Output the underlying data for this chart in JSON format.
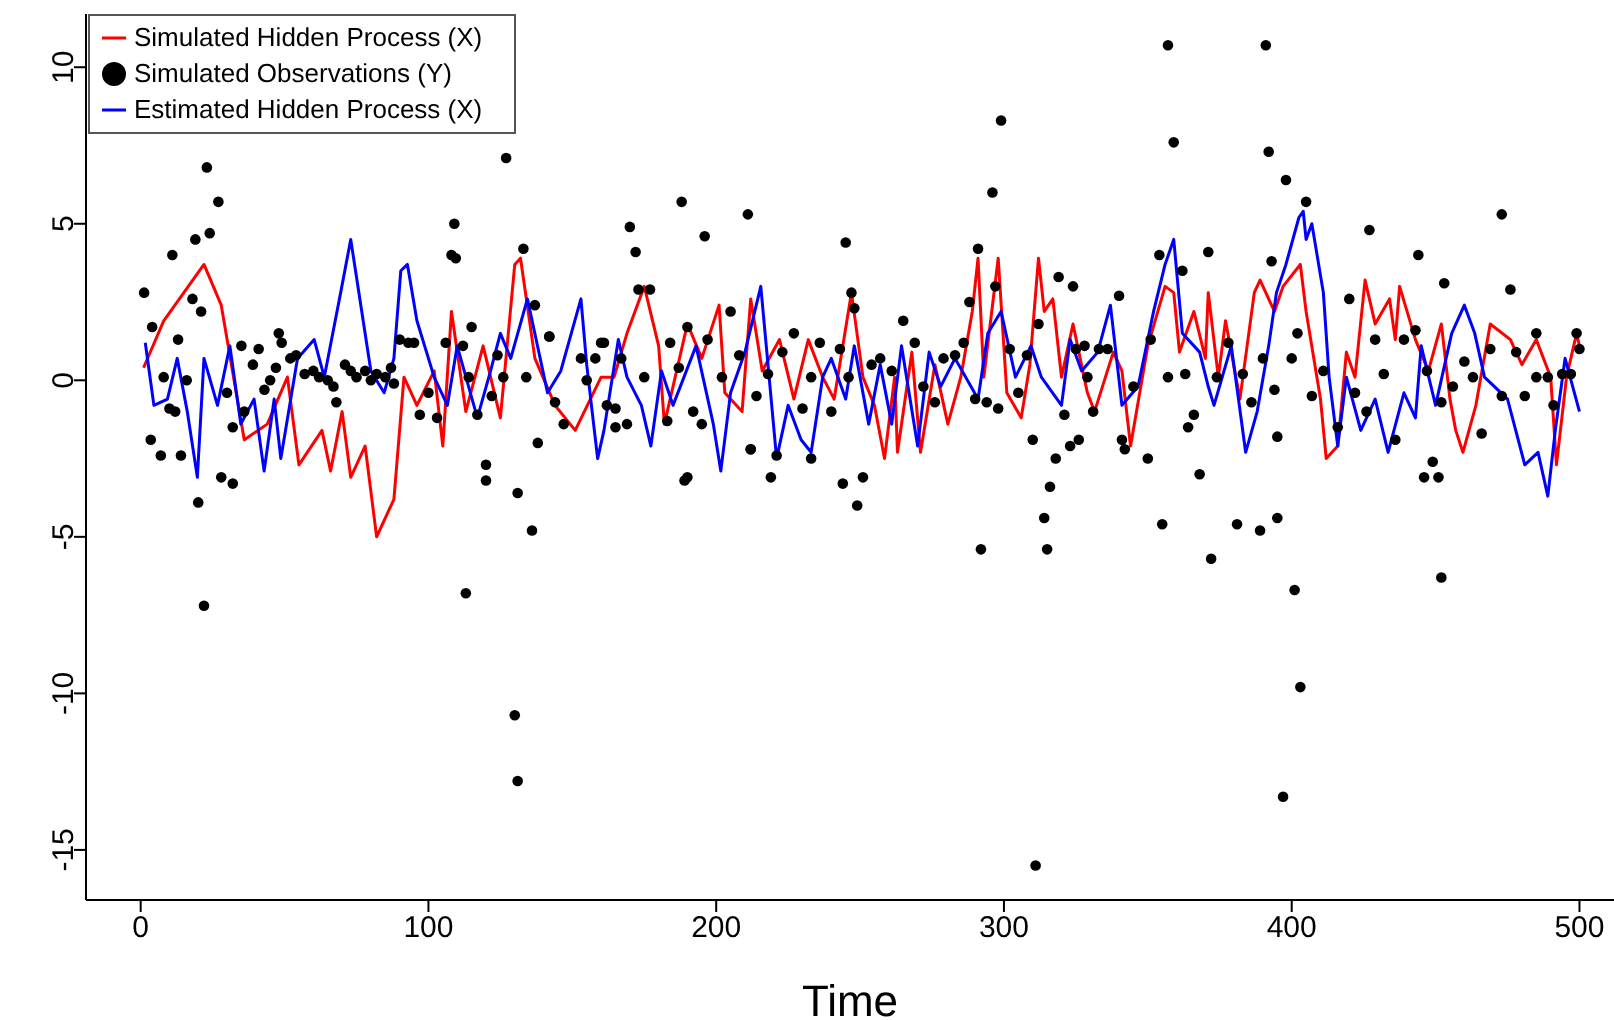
{
  "chart_data": {
    "type": "line",
    "xlabel": "Time",
    "xlim": [
      -19,
      512
    ],
    "ylim": [
      -16.6,
      11.7
    ],
    "xticks": [
      0,
      100,
      200,
      300,
      400,
      500
    ],
    "yticks": [
      -15,
      -10,
      -5,
      0,
      5,
      10
    ],
    "legend": "top left",
    "series": [
      {
        "name": "Simulated Hidden Process (X)",
        "color": "#ff0000",
        "x": [
          1,
          8,
          22,
          28,
          36,
          44,
          51,
          55,
          63,
          66,
          70,
          73,
          78,
          82,
          88,
          91.5,
          96,
          102,
          105,
          108,
          113,
          119,
          125,
          130,
          132,
          137,
          144,
          151,
          160,
          164.5,
          169,
          175,
          180,
          182,
          190,
          195,
          201,
          203,
          209,
          212,
          216,
          222,
          227,
          232,
          237,
          241,
          247,
          251,
          255,
          258.5,
          262,
          263,
          268,
          271,
          276,
          280.5,
          285,
          289,
          291,
          293,
          298,
          301,
          306,
          309,
          312,
          314,
          317,
          320,
          324,
          329,
          331.5,
          338,
          341,
          344,
          350,
          356,
          359,
          361,
          366,
          370,
          371,
          374.5,
          377,
          382,
          387,
          389,
          394,
          397,
          403,
          405,
          410,
          412,
          416,
          419,
          422,
          425.5,
          429,
          434,
          436,
          437.5,
          443,
          447.5,
          452,
          455,
          457,
          459.5,
          464,
          469,
          476,
          480,
          485,
          490,
          492,
          495.5,
          499,
          500
        ],
        "values": [
          0.4,
          1.9,
          3.7,
          2.4,
          -1.9,
          -1.4,
          0.1,
          -2.7,
          -1.6,
          -2.9,
          -1,
          -3.1,
          -2.1,
          -5,
          -3.8,
          0.1,
          -0.8,
          0.3,
          -2.1,
          2.2,
          -1,
          1.1,
          -1.2,
          3.7,
          3.9,
          0.7,
          -0.8,
          -1.6,
          0.1,
          0.1,
          1.5,
          3,
          1.1,
          -1.4,
          1.8,
          0.7,
          2.4,
          -0.4,
          -1,
          2.6,
          0.3,
          1.3,
          -0.6,
          1.3,
          0.1,
          -0.6,
          2.8,
          0.1,
          -0.8,
          -2.5,
          0.1,
          -2.3,
          0.9,
          -2.3,
          0.5,
          -1.4,
          0.1,
          2.2,
          3.9,
          0.1,
          3.9,
          -0.4,
          -1.2,
          0.5,
          3.9,
          2.2,
          2.6,
          0.1,
          1.8,
          -0.4,
          -1,
          0.9,
          0.3,
          -2.1,
          1.1,
          3,
          2.8,
          0.9,
          2.2,
          0.7,
          2.8,
          0.1,
          1.9,
          -0.6,
          2.8,
          3.2,
          2.2,
          3,
          3.7,
          2.2,
          -0.6,
          -2.5,
          -2.1,
          0.9,
          0.1,
          3.2,
          1.8,
          2.6,
          1.3,
          3,
          1.3,
          0.3,
          1.8,
          -0.6,
          -1.6,
          -2.3,
          -0.8,
          1.8,
          1.3,
          0.5,
          1.3,
          0.1,
          -2.7,
          0.1,
          1.5,
          1.1
        ]
      },
      {
        "type": "scatter",
        "name": "Simulated Observations (Y)",
        "color": "#000000",
        "marker": "circle",
        "x": [
          1.2,
          3.5,
          4,
          7,
          8,
          10,
          11,
          12,
          13,
          14,
          16,
          18,
          19,
          20,
          21,
          22,
          23,
          24,
          27,
          28,
          30,
          32,
          32,
          35,
          36,
          39,
          41,
          43,
          45,
          47,
          48,
          49,
          52,
          54,
          57,
          60,
          62,
          65,
          67,
          68,
          71,
          73,
          75,
          78,
          80,
          82,
          85,
          87,
          88,
          90,
          93,
          95,
          97,
          100,
          103,
          106,
          108,
          109,
          109.5,
          112,
          113,
          114,
          115,
          117,
          120,
          120,
          122,
          124,
          126,
          127,
          130,
          131,
          131,
          133,
          134,
          136,
          137,
          138,
          142,
          142,
          144,
          147,
          153,
          155,
          158,
          160,
          161,
          162,
          165,
          165,
          167,
          169,
          170,
          172,
          173,
          175,
          177,
          183,
          184,
          187,
          188,
          189,
          190,
          190,
          192,
          195,
          196,
          197,
          202,
          205,
          208,
          211,
          212,
          212,
          214,
          218,
          219,
          221,
          223,
          227,
          230,
          233,
          233,
          236,
          240,
          243,
          244,
          245,
          246,
          247,
          248,
          249,
          251,
          254,
          257,
          261,
          265,
          269,
          272,
          276,
          279,
          283,
          286,
          288,
          290,
          291,
          292,
          294,
          296,
          297,
          298,
          299,
          302,
          305,
          308,
          310,
          311,
          312,
          314,
          315,
          316,
          318,
          319,
          321,
          323,
          324,
          325,
          326,
          328,
          329,
          331,
          333,
          336,
          340,
          341,
          342,
          345,
          350,
          351,
          354,
          355,
          357,
          357,
          359,
          362,
          363,
          364,
          366,
          368,
          371,
          372,
          374,
          378,
          381,
          383,
          386,
          389,
          390,
          391,
          392,
          393,
          394,
          395,
          395,
          397,
          398,
          400,
          401,
          402,
          403,
          405,
          407,
          411,
          416,
          420,
          422,
          426,
          427,
          429,
          432,
          436,
          439,
          443,
          444,
          446,
          447,
          449,
          451,
          452,
          452,
          453,
          456,
          460,
          463,
          466,
          469,
          473,
          473,
          476,
          478,
          481,
          485,
          485,
          489,
          491,
          494,
          497,
          499,
          500
        ],
        "values": [
          2.8,
          -1.9,
          1.7,
          -2.4,
          0.1,
          -0.9,
          4,
          -1,
          1.3,
          -2.4,
          0,
          2.6,
          4.5,
          -3.9,
          2.2,
          -7.2,
          6.8,
          4.7,
          5.7,
          -3.1,
          -0.4,
          -3.3,
          -1.5,
          1.1,
          -1,
          0.5,
          1,
          -0.3,
          0,
          0.4,
          1.5,
          1.2,
          0.7,
          0.8,
          0.2,
          0.3,
          0.1,
          0,
          -0.2,
          -0.7,
          0.5,
          0.3,
          0.1,
          0.3,
          0,
          0.2,
          0.1,
          0.4,
          -0.1,
          1.3,
          1.2,
          1.2,
          -1.1,
          -0.4,
          -1.2,
          1.2,
          4,
          5,
          3.9,
          1.1,
          -6.8,
          0.1,
          1.7,
          -1.1,
          -3.2,
          -2.7,
          -0.5,
          0.8,
          0.1,
          7.1,
          -10.7,
          -12.8,
          -3.6,
          4.2,
          0.1,
          -4.8,
          2.4,
          -2,
          1.4,
          1.4,
          -0.7,
          -1.4,
          0.7,
          0,
          0.7,
          1.2,
          1.2,
          -0.8,
          -1.5,
          -0.9,
          0.7,
          -1.4,
          4.9,
          4.1,
          2.9,
          0.1,
          2.9,
          -1.3,
          1.2,
          0.4,
          5.7,
          -3.2,
          1.7,
          -3.1,
          -1,
          -1.4,
          4.6,
          1.3,
          0.1,
          2.2,
          0.8,
          5.3,
          -2.2,
          -2.2,
          -0.5,
          0.2,
          -3.1,
          -2.4,
          0.9,
          1.5,
          -0.9,
          0.1,
          -2.5,
          1.2,
          -1,
          1,
          -3.3,
          4.4,
          0.1,
          2.8,
          2.3,
          -4,
          -3.1,
          0.5,
          0.7,
          0.3,
          1.9,
          1.2,
          -0.2,
          -0.7,
          0.7,
          0.8,
          1.2,
          2.5,
          -0.6,
          4.2,
          -5.4,
          -0.7,
          6,
          3,
          -0.9,
          8.3,
          1,
          -0.4,
          0.8,
          -1.9,
          -15.5,
          1.8,
          -4.4,
          -5.4,
          -3.4,
          -2.5,
          3.3,
          -1.1,
          -2.1,
          3,
          1,
          -1.9,
          1.1,
          0.1,
          -1,
          1,
          1,
          2.7,
          -1.9,
          -2.2,
          -0.2,
          -2.5,
          1.3,
          4,
          -4.6,
          0.1,
          10.7,
          7.6,
          3.5,
          0.2,
          -1.5,
          -1.1,
          -3,
          4.1,
          -5.7,
          0.1,
          1.2,
          -4.6,
          0.2,
          -0.7,
          -4.8,
          0.7,
          10.7,
          7.3,
          3.8,
          -0.3,
          -1.8,
          -4.4,
          -13.3,
          6.4,
          0.7,
          -6.7,
          1.5,
          -9.8,
          5.7,
          -0.5,
          0.3,
          -1.5,
          2.6,
          -0.4,
          -1,
          4.8,
          1.3,
          0.2,
          -1.9,
          1.3,
          1.6,
          4,
          -3.1,
          0.3,
          -2.6,
          -3.1,
          -0.7,
          -6.3,
          3.1,
          -0.2,
          0.6,
          0.1,
          -1.7,
          1,
          -0.5,
          5.3,
          2.9,
          0.9,
          -0.5,
          0.1,
          1.5,
          0.1,
          -0.8,
          0.2,
          0.2,
          1.5,
          1
        ]
      },
      {
        "name": "Estimated Hidden Process (X)",
        "color": "#0000ff",
        "x": [
          1.6,
          4.6,
          9.3,
          12.7,
          16.2,
          19.7,
          22,
          26.7,
          31,
          34.8,
          39.4,
          42.9,
          46.4,
          48.7,
          54.5,
          60.3,
          63.8,
          69.5,
          73,
          76.5,
          80,
          84.6,
          88,
          90.4,
          92.7,
          96,
          102,
          106.6,
          110,
          117,
          121.6,
          125,
          128.6,
          134.4,
          141.4,
          146,
          153,
          155,
          158.8,
          161,
          166,
          169,
          174,
          177.3,
          181,
          185,
          193,
          199,
          201.6,
          205,
          210,
          215.5,
          218,
          221,
          225,
          229.5,
          233,
          237,
          240,
          245,
          248,
          253,
          257,
          261,
          264.4,
          270,
          274,
          278,
          283,
          291,
          294.4,
          299,
          304,
          309.4,
          313,
          320,
          323,
          327,
          332.6,
          337,
          341,
          346.6,
          352,
          356,
          359,
          362,
          368,
          371,
          373,
          379,
          384,
          388,
          392,
          394.7,
          398,
          402.5,
          404,
          405,
          407,
          411,
          413,
          416,
          419,
          424,
          429,
          433.5,
          439,
          443,
          445,
          450,
          455.6,
          460,
          463.6,
          467,
          475,
          481,
          485.6,
          489,
          491.6,
          495,
          500
        ],
        "values": [
          1.2,
          -0.8,
          -0.6,
          0.7,
          -1,
          -3.1,
          0.7,
          -0.8,
          1.1,
          -1.4,
          -0.6,
          -2.9,
          -0.6,
          -2.5,
          0.7,
          1.3,
          0.1,
          2.8,
          4.5,
          2.4,
          0.3,
          -0.4,
          0.7,
          3.5,
          3.7,
          1.9,
          0.1,
          -0.8,
          1.1,
          -1.2,
          0.3,
          1.5,
          0.7,
          2.6,
          -0.4,
          0.3,
          2.6,
          0.5,
          -2.5,
          -1.6,
          1.3,
          0.1,
          -0.8,
          -2.1,
          0.3,
          -0.8,
          1.1,
          -1.4,
          -2.9,
          -0.4,
          0.9,
          3,
          0.5,
          -2.5,
          -0.8,
          -1.9,
          -2.3,
          0.1,
          0.7,
          -0.6,
          1.1,
          -1.4,
          0.5,
          -1.4,
          1.1,
          -2.1,
          0.9,
          -0.2,
          0.7,
          -0.6,
          1.5,
          2.2,
          0.1,
          1.1,
          0.1,
          -0.8,
          1.3,
          0.3,
          0.9,
          2.4,
          -0.8,
          -0.2,
          2.2,
          3.7,
          4.5,
          1.5,
          0.9,
          -0.2,
          -0.8,
          1.1,
          -2.3,
          -1,
          1.1,
          2.8,
          3.7,
          5.2,
          5.4,
          4.5,
          5,
          2.8,
          0.1,
          -2.1,
          0.1,
          -1.6,
          -0.6,
          -2.3,
          -0.4,
          -1.2,
          1.1,
          -0.8,
          1.5,
          2.4,
          1.5,
          0.1,
          -0.6,
          -2.7,
          -2.3,
          -3.7,
          -1.6,
          0.7,
          -1
        ]
      }
    ]
  }
}
